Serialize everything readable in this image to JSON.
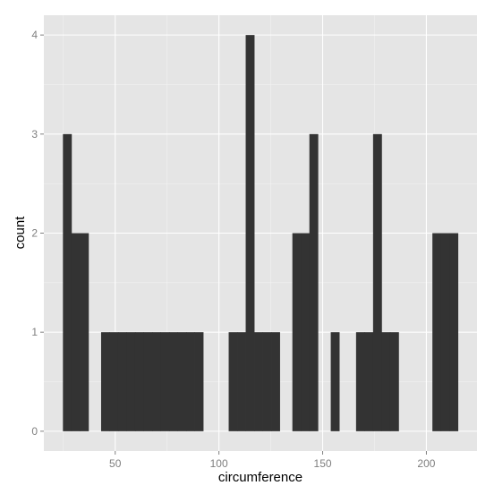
{
  "chart_data": {
    "type": "bar",
    "subtype": "histogram",
    "title": "",
    "xlabel": "circumference",
    "ylabel": "count",
    "xlim": [
      15.6,
      224.4
    ],
    "ylim": [
      -0.2,
      4.2
    ],
    "x_ticks": [
      50,
      100,
      150,
      200
    ],
    "y_ticks": [
      0,
      1,
      2,
      3,
      4
    ],
    "bin_width": 4.1,
    "grid": true,
    "panel_background": "#e5e5e5",
    "grid_color": "#ffffff",
    "bar_color": "#333333",
    "bins": [
      {
        "x0": 24.8,
        "x1": 28.9,
        "count": 3
      },
      {
        "x0": 28.9,
        "x1": 33.0,
        "count": 2
      },
      {
        "x0": 33.0,
        "x1": 37.1,
        "count": 2
      },
      {
        "x0": 43.2,
        "x1": 47.3,
        "count": 1
      },
      {
        "x0": 47.3,
        "x1": 51.4,
        "count": 1
      },
      {
        "x0": 51.4,
        "x1": 55.5,
        "count": 1
      },
      {
        "x0": 55.5,
        "x1": 59.6,
        "count": 1
      },
      {
        "x0": 59.6,
        "x1": 63.7,
        "count": 1
      },
      {
        "x0": 63.7,
        "x1": 67.8,
        "count": 1
      },
      {
        "x0": 67.8,
        "x1": 71.9,
        "count": 1
      },
      {
        "x0": 71.9,
        "x1": 76.0,
        "count": 1
      },
      {
        "x0": 76.0,
        "x1": 80.1,
        "count": 1
      },
      {
        "x0": 80.1,
        "x1": 84.2,
        "count": 1
      },
      {
        "x0": 84.2,
        "x1": 88.3,
        "count": 1
      },
      {
        "x0": 88.3,
        "x1": 92.4,
        "count": 1
      },
      {
        "x0": 104.7,
        "x1": 108.8,
        "count": 1
      },
      {
        "x0": 108.8,
        "x1": 112.9,
        "count": 1
      },
      {
        "x0": 112.9,
        "x1": 117.0,
        "count": 4
      },
      {
        "x0": 117.0,
        "x1": 121.1,
        "count": 1
      },
      {
        "x0": 121.1,
        "x1": 125.2,
        "count": 1
      },
      {
        "x0": 125.2,
        "x1": 129.3,
        "count": 1
      },
      {
        "x0": 135.4,
        "x1": 139.5,
        "count": 2
      },
      {
        "x0": 139.5,
        "x1": 143.6,
        "count": 2
      },
      {
        "x0": 143.6,
        "x1": 147.7,
        "count": 3
      },
      {
        "x0": 153.9,
        "x1": 158.0,
        "count": 1
      },
      {
        "x0": 166.1,
        "x1": 170.2,
        "count": 1
      },
      {
        "x0": 170.2,
        "x1": 174.3,
        "count": 1
      },
      {
        "x0": 174.3,
        "x1": 178.4,
        "count": 3
      },
      {
        "x0": 178.4,
        "x1": 182.5,
        "count": 1
      },
      {
        "x0": 182.5,
        "x1": 186.6,
        "count": 1
      },
      {
        "x0": 202.9,
        "x1": 207.0,
        "count": 2
      },
      {
        "x0": 207.0,
        "x1": 211.1,
        "count": 2
      },
      {
        "x0": 211.1,
        "x1": 215.2,
        "count": 2
      }
    ]
  }
}
